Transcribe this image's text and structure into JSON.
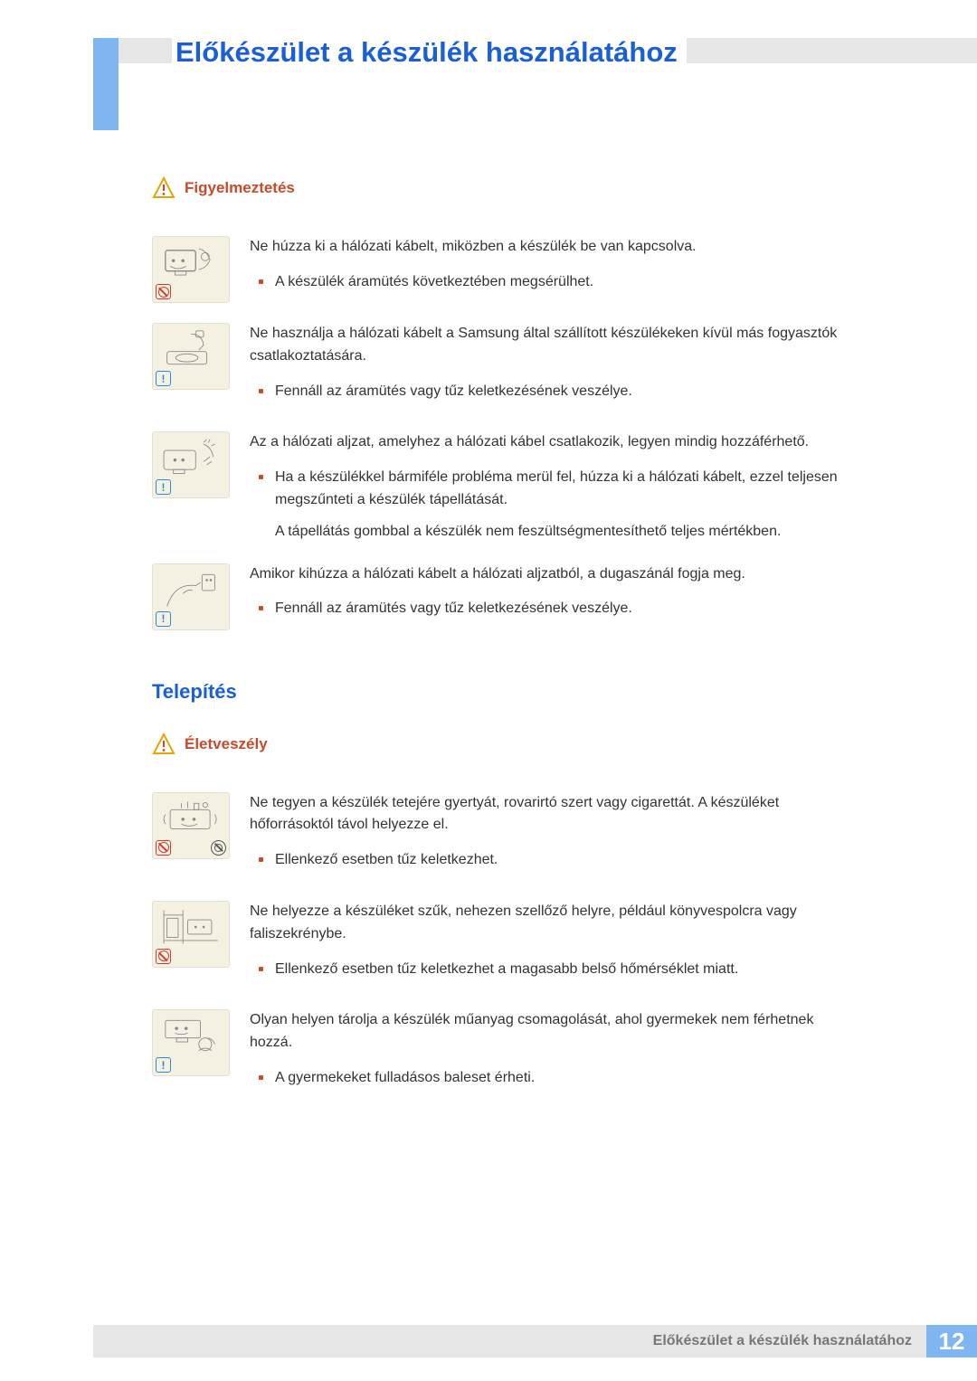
{
  "colors": {
    "accent_blue": "#1a5fd6",
    "light_blue": "#7fb6f2",
    "header_gray": "#e6e6e6",
    "warn_red": "#c84a2a",
    "illus_bg": "#f4f1e3",
    "text": "#333333",
    "footer_text": "#777777"
  },
  "chapter_title": "Előkészület a készülék használatához",
  "section1": {
    "label": "Figyelmeztetés",
    "items": [
      {
        "badge": "prohibit",
        "lead": "Ne húzza ki a hálózati kábelt, miközben a készülék be van kapcsolva.",
        "bullets": [
          "A készülék áramütés következtében megsérülhet."
        ]
      },
      {
        "badge": "info",
        "lead": "Ne használja a hálózati kábelt a Samsung által szállított készülékeken kívül más fogyasztók csatlakoztatására.",
        "bullets": [
          "Fennáll az áramütés vagy tűz keletkezésének veszélye."
        ]
      },
      {
        "badge": "info",
        "lead": "Az a hálózati aljzat, amelyhez a hálózati kábel csatlakozik, legyen mindig hozzáférhető.",
        "bullets": [
          "Ha a készülékkel bármiféle probléma merül fel, húzza ki a hálózati kábelt, ezzel teljesen megszűnteti a készülék tápellátását."
        ],
        "sub": "A tápellátás gombbal a készülék nem feszültségmentesíthető teljes mértékben."
      },
      {
        "badge": "info",
        "lead": "Amikor kihúzza a hálózati kábelt a hálózati aljzatból, a dugaszánál fogja meg.",
        "bullets": [
          "Fennáll az áramütés vagy tűz keletkezésének veszélye."
        ]
      }
    ]
  },
  "section2": {
    "title": "Telepítés",
    "label": "Életveszély",
    "items": [
      {
        "badge": "prohibit",
        "extra_icon": true,
        "lead": "Ne tegyen a készülék tetejére gyertyát, rovarirtó szert vagy cigarettát. A készüléket hőforrásoktól távol helyezze el.",
        "bullets": [
          "Ellenkező esetben tűz keletkezhet."
        ]
      },
      {
        "badge": "prohibit",
        "lead": "Ne helyezze a készüléket szűk, nehezen szellőző helyre, például könyvespolcra vagy faliszekrénybe.",
        "bullets": [
          "Ellenkező esetben tűz keletkezhet a magasabb belső hőmérséklet miatt."
        ]
      },
      {
        "badge": "info",
        "lead": "Olyan helyen tárolja a készülék műanyag csomagolását, ahol gyermekek nem férhetnek hozzá.",
        "bullets": [
          "A gyermekeket fulladásos baleset érheti."
        ]
      }
    ]
  },
  "footer": {
    "label": "Előkészület a készülék használatához",
    "page": "12"
  }
}
